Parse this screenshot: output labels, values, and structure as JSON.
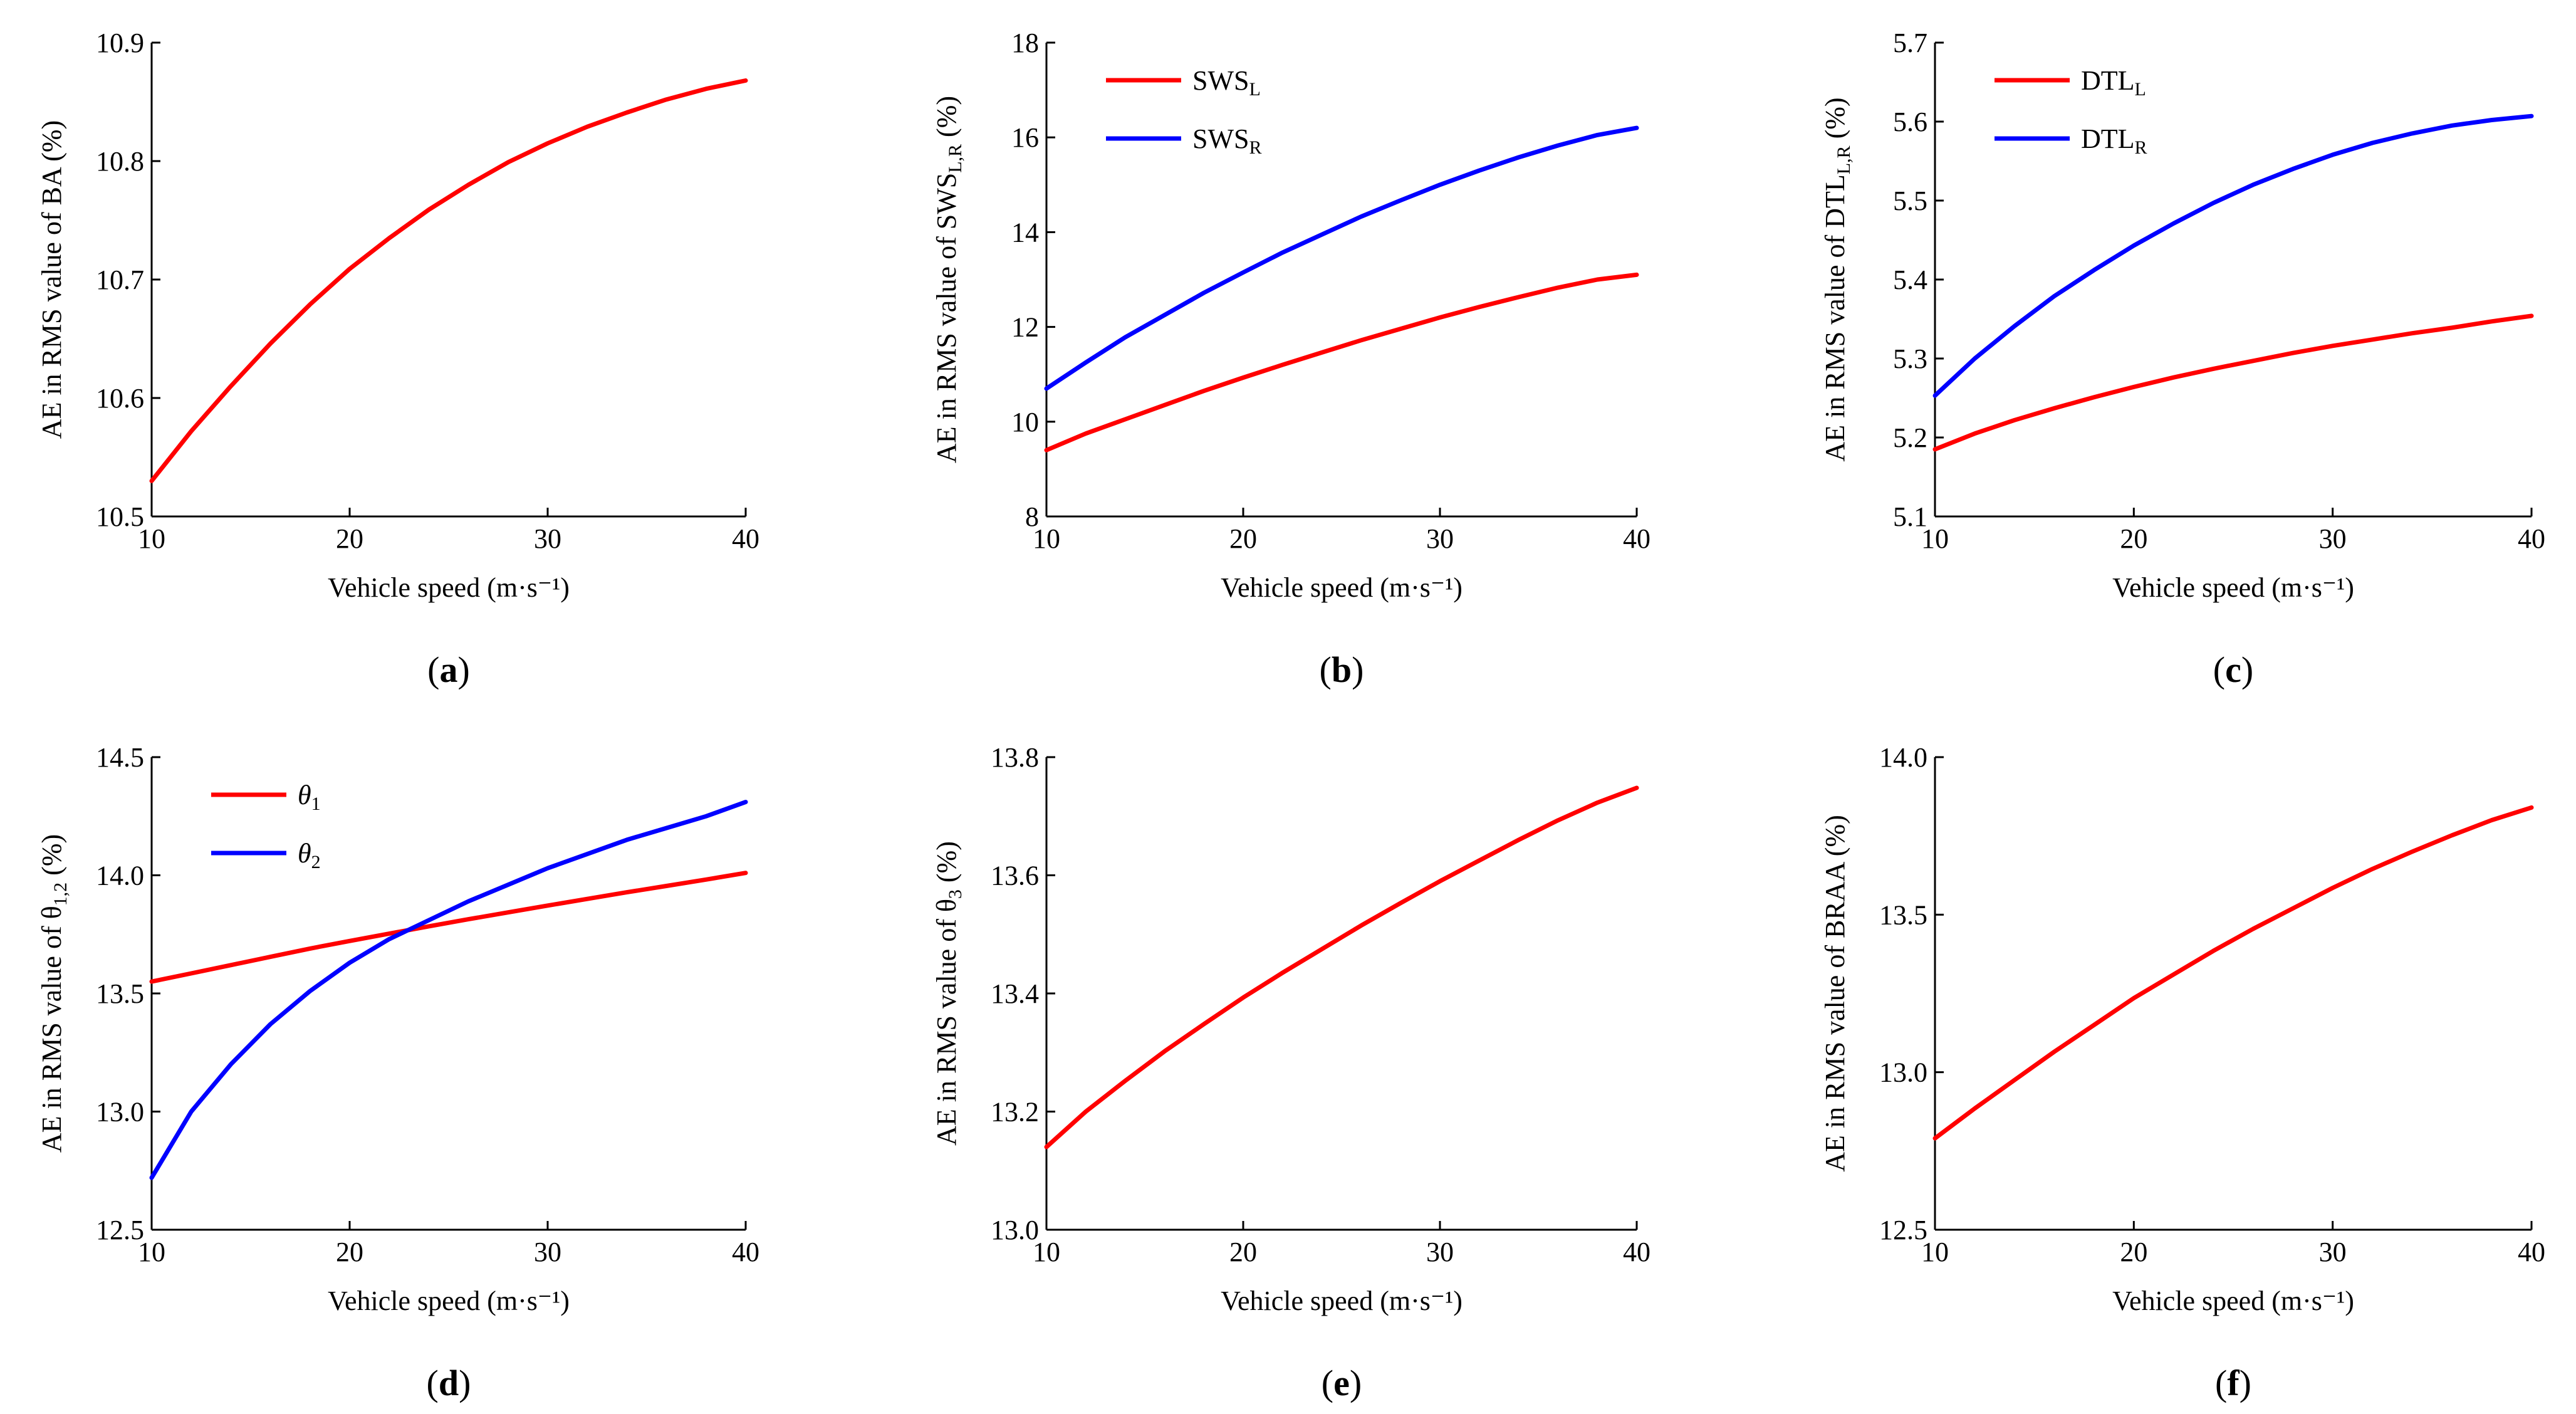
{
  "chart_data": [
    {
      "id": "a",
      "panel_label": "(a)",
      "type": "line",
      "xlabel": "Vehicle speed (m·s⁻¹)",
      "ylabel": "AE in RMS value of BA (%)",
      "xlim": [
        10,
        40
      ],
      "ylim": [
        10.5,
        10.9
      ],
      "xticks": [
        10,
        20,
        30,
        40
      ],
      "yticks": [
        10.5,
        10.6,
        10.7,
        10.8,
        10.9
      ],
      "ytick_labels": [
        "10.5",
        "10.6",
        "10.7",
        "10.8",
        "10.9"
      ],
      "legend": null,
      "series": [
        {
          "name": "BA",
          "color": "#ff0000",
          "x": [
            10,
            12,
            14,
            16,
            18,
            20,
            22,
            24,
            26,
            28,
            30,
            32,
            34,
            36,
            38,
            40
          ],
          "y": [
            10.53,
            10.572,
            10.61,
            10.646,
            10.679,
            10.709,
            10.735,
            10.759,
            10.78,
            10.799,
            10.815,
            10.829,
            10.841,
            10.852,
            10.861,
            10.868
          ]
        }
      ]
    },
    {
      "id": "b",
      "panel_label": "(b)",
      "type": "line",
      "xlabel": "Vehicle speed (m·s⁻¹)",
      "ylabel": "AE in RMS value of SWS",
      "ylabel_sub": "L,R",
      "ylabel_tail": " (%)",
      "xlim": [
        10,
        40
      ],
      "ylim": [
        8,
        18
      ],
      "xticks": [
        10,
        20,
        30,
        40
      ],
      "yticks": [
        8,
        10,
        12,
        14,
        16,
        18
      ],
      "ytick_labels": [
        "8",
        "10",
        "12",
        "14",
        "16",
        "18"
      ],
      "legend": "top-left",
      "series": [
        {
          "name": "SWS",
          "name_sub": "L",
          "color": "#ff0000",
          "x": [
            10,
            12,
            14,
            16,
            18,
            20,
            22,
            24,
            26,
            28,
            30,
            32,
            34,
            36,
            38,
            40
          ],
          "y": [
            9.4,
            9.75,
            10.05,
            10.35,
            10.65,
            10.93,
            11.2,
            11.46,
            11.72,
            11.96,
            12.2,
            12.42,
            12.63,
            12.83,
            13.0,
            13.1
          ]
        },
        {
          "name": "SWS",
          "name_sub": "R",
          "color": "#0000ff",
          "x": [
            10,
            12,
            14,
            16,
            18,
            20,
            22,
            24,
            26,
            28,
            30,
            32,
            34,
            36,
            38,
            40
          ],
          "y": [
            10.7,
            11.25,
            11.78,
            12.25,
            12.72,
            13.15,
            13.57,
            13.95,
            14.33,
            14.67,
            15.0,
            15.3,
            15.58,
            15.83,
            16.05,
            16.2
          ]
        }
      ]
    },
    {
      "id": "c",
      "panel_label": "(c)",
      "type": "line",
      "xlabel": "Vehicle speed (m·s⁻¹)",
      "ylabel": "AE in RMS value of DTL",
      "ylabel_sub": "L,R",
      "ylabel_tail": " (%)",
      "xlim": [
        10,
        40
      ],
      "ylim": [
        5.1,
        5.7
      ],
      "xticks": [
        10,
        20,
        30,
        40
      ],
      "yticks": [
        5.1,
        5.2,
        5.3,
        5.4,
        5.5,
        5.6,
        5.7
      ],
      "ytick_labels": [
        "5.1",
        "5.2",
        "5.3",
        "5.4",
        "5.5",
        "5.6",
        "5.7"
      ],
      "legend": "top-left",
      "series": [
        {
          "name": "DTL",
          "name_sub": "L",
          "color": "#ff0000",
          "x": [
            10,
            12,
            14,
            16,
            18,
            20,
            22,
            24,
            26,
            28,
            30,
            32,
            34,
            36,
            38,
            40
          ],
          "y": [
            5.185,
            5.205,
            5.222,
            5.237,
            5.251,
            5.264,
            5.276,
            5.287,
            5.297,
            5.307,
            5.316,
            5.324,
            5.332,
            5.339,
            5.347,
            5.354
          ]
        },
        {
          "name": "DTL",
          "name_sub": "R",
          "color": "#0000ff",
          "x": [
            10,
            12,
            14,
            16,
            18,
            20,
            22,
            24,
            26,
            28,
            30,
            32,
            34,
            36,
            38,
            40
          ],
          "y": [
            5.253,
            5.3,
            5.341,
            5.379,
            5.412,
            5.443,
            5.471,
            5.497,
            5.52,
            5.54,
            5.558,
            5.573,
            5.585,
            5.595,
            5.602,
            5.607
          ]
        }
      ]
    },
    {
      "id": "d",
      "panel_label": "(d)",
      "type": "line",
      "xlabel": "Vehicle speed (m·s⁻¹)",
      "ylabel": "AE in RMS value of θ",
      "ylabel_sub": "1,2",
      "ylabel_tail": " (%)",
      "xlim": [
        10,
        40
      ],
      "ylim": [
        12.5,
        14.5
      ],
      "xticks": [
        10,
        20,
        30,
        40
      ],
      "yticks": [
        12.5,
        13.0,
        13.5,
        14.0,
        14.5
      ],
      "ytick_labels": [
        "12.5",
        "13.0",
        "13.5",
        "14.0",
        "14.5"
      ],
      "legend": "top-left",
      "series": [
        {
          "name": "θ",
          "name_sub": "1",
          "color": "#ff0000",
          "x": [
            10,
            12,
            14,
            16,
            18,
            20,
            22,
            24,
            26,
            28,
            30,
            32,
            34,
            36,
            38,
            40
          ],
          "y": [
            13.55,
            13.585,
            13.62,
            13.655,
            13.69,
            13.722,
            13.753,
            13.784,
            13.814,
            13.843,
            13.872,
            13.9,
            13.928,
            13.955,
            13.982,
            14.01
          ]
        },
        {
          "name": "θ",
          "name_sub": "2",
          "color": "#0000ff",
          "x": [
            10,
            12,
            14,
            16,
            18,
            20,
            22,
            24,
            26,
            28,
            30,
            32,
            34,
            36,
            38,
            40
          ],
          "y": [
            12.72,
            13.0,
            13.2,
            13.37,
            13.51,
            13.63,
            13.73,
            13.81,
            13.89,
            13.96,
            14.03,
            14.09,
            14.15,
            14.2,
            14.25,
            14.31
          ]
        }
      ]
    },
    {
      "id": "e",
      "panel_label": "(e)",
      "type": "line",
      "xlabel": "Vehicle speed (m·s⁻¹)",
      "ylabel": "AE in RMS value of θ",
      "ylabel_sub": "3",
      "ylabel_tail": " (%)",
      "xlim": [
        10,
        40
      ],
      "ylim": [
        13.0,
        13.8
      ],
      "xticks": [
        10,
        20,
        30,
        40
      ],
      "yticks": [
        13.0,
        13.2,
        13.4,
        13.6,
        13.8
      ],
      "ytick_labels": [
        "13.0",
        "13.2",
        "13.4",
        "13.6",
        "13.8"
      ],
      "legend": null,
      "series": [
        {
          "name": "θ3",
          "color": "#ff0000",
          "x": [
            10,
            12,
            14,
            16,
            18,
            20,
            22,
            24,
            26,
            28,
            30,
            32,
            34,
            36,
            38,
            40
          ],
          "y": [
            13.14,
            13.2,
            13.252,
            13.302,
            13.348,
            13.393,
            13.435,
            13.475,
            13.515,
            13.553,
            13.59,
            13.625,
            13.66,
            13.693,
            13.723,
            13.748
          ]
        }
      ]
    },
    {
      "id": "f",
      "panel_label": "(f)",
      "type": "line",
      "xlabel": "Vehicle speed (m·s⁻¹)",
      "ylabel": "AE in RMS value of BRAA (%)",
      "xlim": [
        10,
        40
      ],
      "ylim": [
        12.5,
        14.0
      ],
      "xticks": [
        10,
        20,
        30,
        40
      ],
      "yticks": [
        12.5,
        13.0,
        13.5,
        14.0
      ],
      "ytick_labels": [
        "12.5",
        "13.0",
        "13.5",
        "14.0"
      ],
      "legend": null,
      "series": [
        {
          "name": "BRAA",
          "color": "#ff0000",
          "x": [
            10,
            12,
            14,
            16,
            18,
            20,
            22,
            24,
            26,
            28,
            30,
            32,
            34,
            36,
            38,
            40
          ],
          "y": [
            12.79,
            12.885,
            12.975,
            13.065,
            13.15,
            13.235,
            13.31,
            13.385,
            13.455,
            13.52,
            13.585,
            13.645,
            13.7,
            13.752,
            13.8,
            13.84
          ]
        }
      ]
    }
  ]
}
